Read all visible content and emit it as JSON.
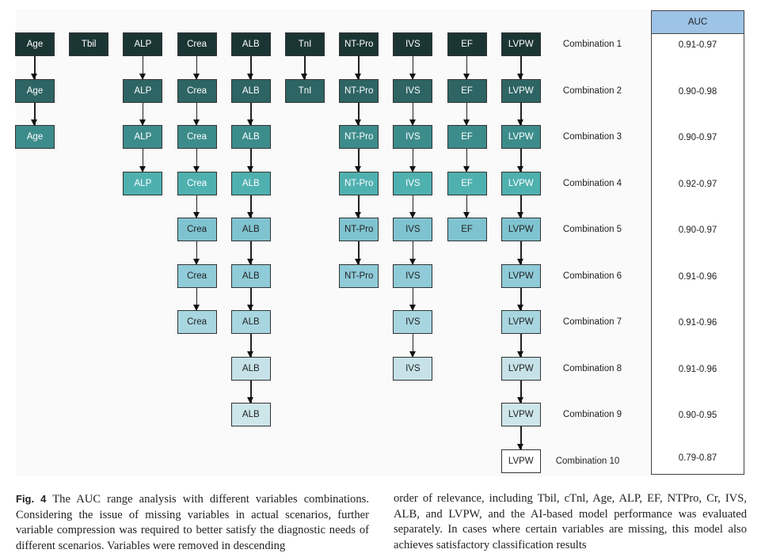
{
  "variables": [
    {
      "name": "Age",
      "depth": 3
    },
    {
      "name": "Tbil",
      "depth": 1
    },
    {
      "name": "ALP",
      "depth": 4
    },
    {
      "name": "Crea",
      "depth": 7
    },
    {
      "name": "ALB",
      "depth": 9
    },
    {
      "name": "TnI",
      "depth": 2
    },
    {
      "name": "NT-Pro",
      "depth": 6
    },
    {
      "name": "IVS",
      "depth": 8
    },
    {
      "name": "EF",
      "depth": 5
    },
    {
      "name": "LVPW",
      "depth": 10
    }
  ],
  "row_colors": [
    "#1b3535",
    "#2e6464",
    "#3d8c8c",
    "#4fb0b0",
    "#7fc3d0",
    "#8fcbd8",
    "#a8d6e0",
    "#c6e2e8",
    "#cde6ea",
    "#ffffff"
  ],
  "auc_header": "AUC",
  "auc_header_color": "#9dc3e6",
  "combinations": [
    {
      "label": "Combination 1",
      "auc": "0.91-0.97"
    },
    {
      "label": "Combination 2",
      "auc": "0.90-0.98"
    },
    {
      "label": "Combination 3",
      "auc": "0.90-0.97"
    },
    {
      "label": "Combination 4",
      "auc": "0.92-0.97"
    },
    {
      "label": "Combination 5",
      "auc": "0.90-0.97"
    },
    {
      "label": "Combination 6",
      "auc": "0.91-0.96"
    },
    {
      "label": "Combination 7",
      "auc": "0.91-0.96"
    },
    {
      "label": "Combination 8",
      "auc": "0.91-0.96"
    },
    {
      "label": "Combination 9",
      "auc": "0.90-0.95"
    },
    {
      "label": "Combination 10",
      "auc": "0.79-0.87"
    }
  ],
  "caption": {
    "label": "Fig. 4",
    "left": "The AUC range analysis with different variables combinations. Considering the issue of missing variables in actual scenarios, further variable compression was required to better satisfy the diagnostic needs of different scenarios. Variables were removed in descending",
    "right": "order of relevance, including Tbil, cTnl, Age, ALP, EF, NTPro, Cr, IVS, ALB, and LVPW, and the AI-based model performance was evaluated separately. In cases where certain variables are missing, this model also achieves satisfactory classification results"
  }
}
